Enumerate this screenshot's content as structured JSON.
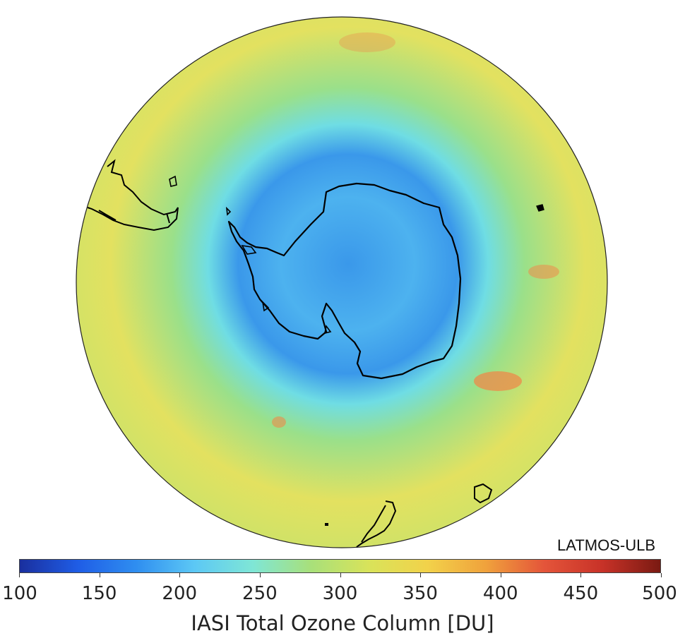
{
  "credit": "LATMOS-ULB",
  "colorbar": {
    "title": "IASI Total Ozone Column [DU]",
    "min": 100,
    "max": 500,
    "ticks": [
      "100",
      "150",
      "200",
      "250",
      "300",
      "350",
      "400",
      "450",
      "500"
    ],
    "colors": [
      "#1a2f9e",
      "#1f5de6",
      "#2f8ef0",
      "#5cc8f5",
      "#7fe6d6",
      "#a8e07a",
      "#d9e35a",
      "#f2d24a",
      "#f0a23c",
      "#e4553a",
      "#c83228",
      "#7a1a12"
    ]
  },
  "map": {
    "projection": "south-polar-stereographic",
    "colors": {
      "outer": "#c9e36a",
      "ring_yellow": "#e3e160",
      "ring_green": "#9ae08a",
      "ring_cyan": "#6fdde4",
      "hole": "#3a98ea",
      "hole_core": "#4db2ef",
      "hotspot": "#ee8a4a"
    }
  }
}
